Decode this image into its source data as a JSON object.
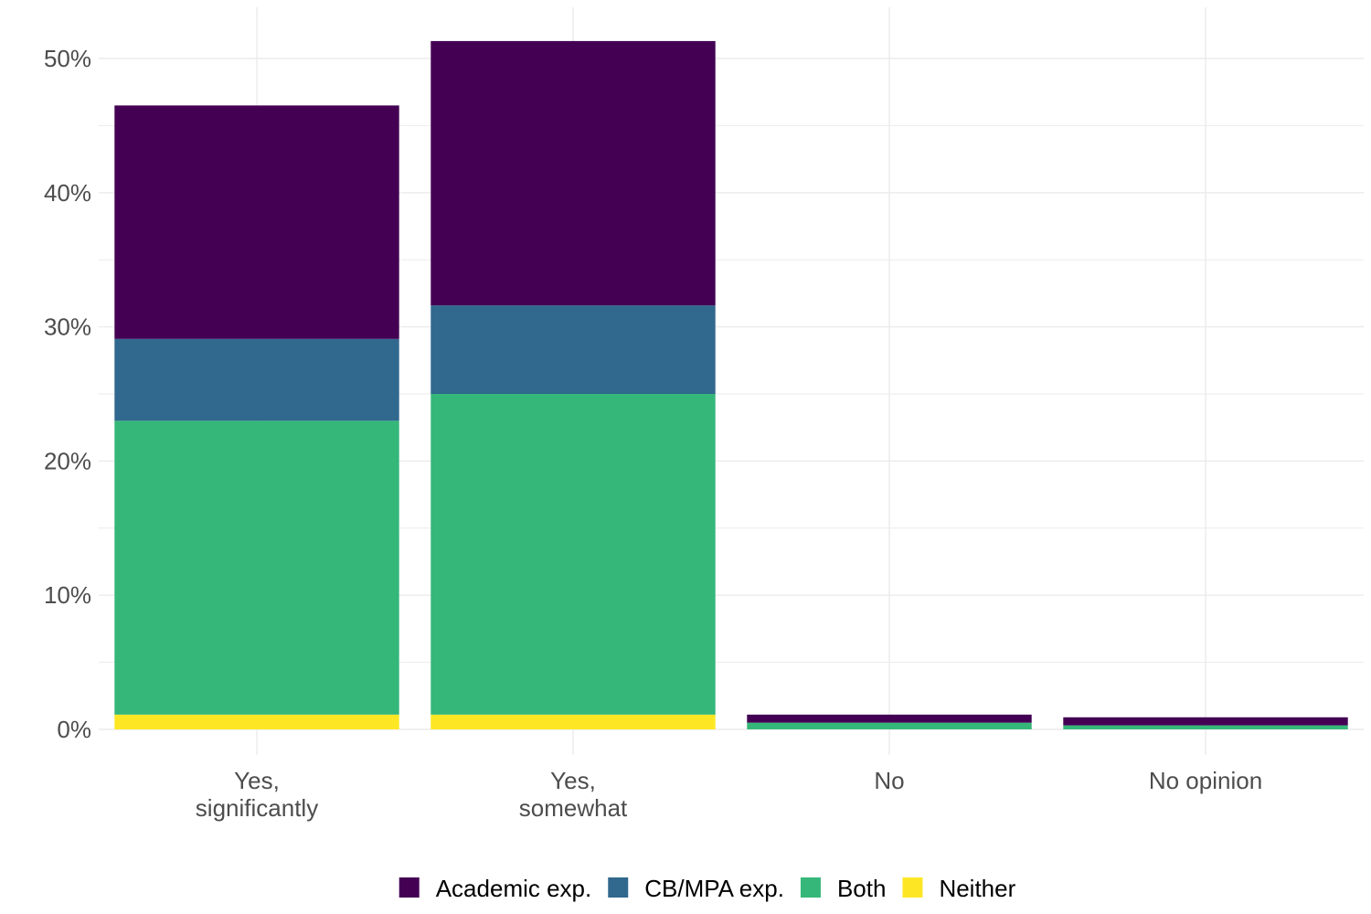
{
  "chart_data": {
    "type": "bar",
    "stacked": true,
    "title": "",
    "xlabel": "",
    "ylabel": "",
    "ylim": [
      0,
      52.5
    ],
    "yticks": [
      0,
      10,
      20,
      30,
      40,
      50
    ],
    "ytick_labels": [
      "0%",
      "10%",
      "20%",
      "30%",
      "40%",
      "50%"
    ],
    "categories": [
      {
        "lines": [
          "Yes,",
          "significantly"
        ]
      },
      {
        "lines": [
          "Yes,",
          "somewhat"
        ]
      },
      {
        "lines": [
          "No"
        ]
      },
      {
        "lines": [
          "No opinion"
        ]
      }
    ],
    "series": [
      {
        "name": "Neither",
        "color": "#FDE725",
        "values": [
          1.1,
          1.1,
          0.0,
          0.0
        ]
      },
      {
        "name": "Both",
        "color": "#35B779",
        "values": [
          21.9,
          23.9,
          0.5,
          0.3
        ]
      },
      {
        "name": "CB/MPA exp.",
        "color": "#31688E",
        "values": [
          6.1,
          6.6,
          0.0,
          0.0
        ]
      },
      {
        "name": "Academic exp.",
        "color": "#440154",
        "values": [
          17.4,
          19.7,
          0.6,
          0.6
        ]
      }
    ],
    "legend": {
      "position": "bottom",
      "order": [
        "Academic exp.",
        "CB/MPA exp.",
        "Both",
        "Neither"
      ]
    },
    "grid": true
  }
}
